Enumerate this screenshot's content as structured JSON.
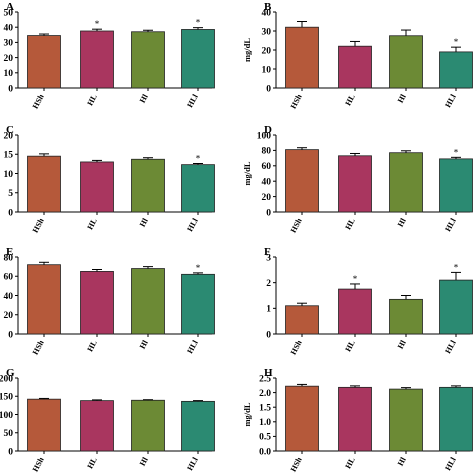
{
  "figure": {
    "background": "#ffffff"
  },
  "colors": [
    "#b5593a",
    "#a9365f",
    "#6c8a35",
    "#2b8a72"
  ],
  "chart_data": [
    {
      "id": "A",
      "type": "bar",
      "letter": "A",
      "ylabel": "",
      "categories": [
        "HSh",
        "HL",
        "Hl",
        "HLl"
      ],
      "values": [
        34.5,
        37.5,
        37.0,
        38.5
      ],
      "errors": [
        1.0,
        1.2,
        1.0,
        1.2
      ],
      "significant": [
        false,
        true,
        false,
        true
      ],
      "sig_marker": "*",
      "ylim": [
        0,
        50
      ],
      "yticks": [
        "0",
        "10",
        "20",
        "30",
        "40",
        "50"
      ]
    },
    {
      "id": "B",
      "type": "bar",
      "letter": "B",
      "ylabel": "mg/dL",
      "categories": [
        "HSh",
        "HL",
        "Hl",
        "HLl"
      ],
      "values": [
        32.0,
        22.0,
        27.5,
        19.0
      ],
      "errors": [
        3.0,
        2.5,
        3.0,
        2.5
      ],
      "significant": [
        false,
        false,
        false,
        true
      ],
      "sig_marker": "*",
      "ylim": [
        0,
        40
      ],
      "yticks": [
        "0",
        "10",
        "20",
        "30",
        "40"
      ]
    },
    {
      "id": "C",
      "type": "bar",
      "letter": "C",
      "ylabel": "",
      "categories": [
        "HSh",
        "HL",
        "Hl",
        "HLl"
      ],
      "values": [
        14.5,
        13.0,
        13.7,
        12.3
      ],
      "errors": [
        0.6,
        0.4,
        0.4,
        0.3
      ],
      "significant": [
        false,
        false,
        false,
        true
      ],
      "sig_marker": "*",
      "ylim": [
        0,
        20
      ],
      "yticks": [
        "0",
        "5",
        "10",
        "15",
        "20"
      ]
    },
    {
      "id": "D",
      "type": "bar",
      "letter": "D",
      "ylabel": "mg/dL",
      "categories": [
        "HSh",
        "HL",
        "Hl",
        "HLl"
      ],
      "values": [
        81.0,
        73.0,
        77.0,
        69.0
      ],
      "errors": [
        2.5,
        3.0,
        2.5,
        2.0
      ],
      "significant": [
        false,
        false,
        false,
        true
      ],
      "sig_marker": "*",
      "ylim": [
        0,
        100
      ],
      "yticks": [
        "0",
        "20",
        "40",
        "60",
        "80",
        "100"
      ]
    },
    {
      "id": "E",
      "type": "bar",
      "letter": "E",
      "ylabel": "",
      "categories": [
        "HSh",
        "HL",
        "Hl",
        "HLl"
      ],
      "values": [
        72.0,
        65.0,
        68.0,
        62.0
      ],
      "errors": [
        2.5,
        2.0,
        2.0,
        1.5
      ],
      "significant": [
        false,
        false,
        false,
        true
      ],
      "sig_marker": "*",
      "ylim": [
        0,
        80
      ],
      "yticks": [
        "0",
        "20",
        "40",
        "60",
        "80"
      ]
    },
    {
      "id": "F",
      "type": "bar",
      "letter": "F",
      "ylabel": "",
      "categories": [
        "HSh",
        "HL",
        "Hl",
        "HLl"
      ],
      "values": [
        1.1,
        1.75,
        1.35,
        2.1
      ],
      "errors": [
        0.1,
        0.2,
        0.15,
        0.3
      ],
      "significant": [
        false,
        true,
        false,
        true
      ],
      "sig_marker": "*",
      "ylim": [
        0,
        3
      ],
      "yticks": [
        "0",
        "1",
        "2",
        "3"
      ]
    },
    {
      "id": "G",
      "type": "bar",
      "letter": "G",
      "ylabel": "",
      "categories": [
        "HSh",
        "HL",
        "Hl",
        "HLl"
      ],
      "values": [
        142.0,
        138.0,
        139.0,
        136.0
      ],
      "errors": [
        2.0,
        2.0,
        1.5,
        2.0
      ],
      "significant": [
        false,
        false,
        false,
        false
      ],
      "sig_marker": "*",
      "ylim": [
        0,
        200
      ],
      "yticks": [
        "0",
        "50",
        "100",
        "150",
        "200"
      ]
    },
    {
      "id": "H",
      "type": "bar",
      "letter": "H",
      "ylabel": "mg/dL",
      "categories": [
        "HSh",
        "HL",
        "Hl",
        "HLl"
      ],
      "values": [
        2.22,
        2.18,
        2.12,
        2.18
      ],
      "errors": [
        0.06,
        0.05,
        0.05,
        0.05
      ],
      "significant": [
        false,
        false,
        false,
        false
      ],
      "sig_marker": "*",
      "ylim": [
        0,
        2.5
      ],
      "yticks": [
        "0.0",
        "0.5",
        "1.0",
        "1.5",
        "2.0",
        "2.5"
      ]
    }
  ]
}
